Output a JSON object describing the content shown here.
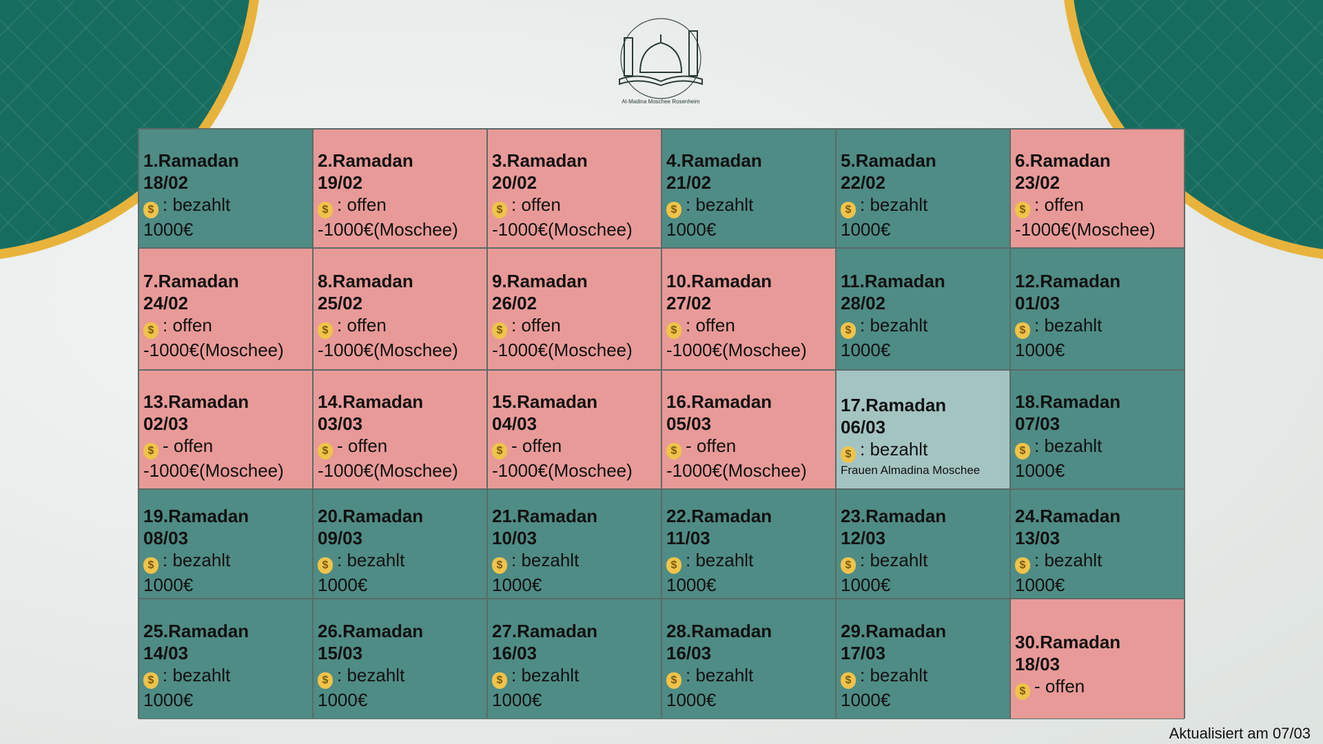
{
  "logo": {
    "text": "Al-Madina Moschee Rosenheim"
  },
  "colors": {
    "bezahlt": "#4f8c85",
    "offen": "#e89a98",
    "special": "#a4c4c2",
    "corner": "#176c60",
    "gold": "#e8b33c"
  },
  "icon": "money-bag-icon",
  "days": [
    {
      "title": "1.Ramadan",
      "date": "18/02",
      "status": ": bezahlt",
      "amount": "1000€",
      "state": "bezahlt"
    },
    {
      "title": "2.Ramadan",
      "date": "19/02",
      "status": ": offen",
      "amount": "-1000€(Moschee)",
      "state": "offen"
    },
    {
      "title": "3.Ramadan",
      "date": "20/02",
      "status": ": offen",
      "amount": "-1000€(Moschee)",
      "state": "offen"
    },
    {
      "title": "4.Ramadan",
      "date": "21/02",
      "status": ": bezahlt",
      "amount": "1000€",
      "state": "bezahlt"
    },
    {
      "title": "5.Ramadan",
      "date": "22/02",
      "status": ": bezahlt",
      "amount": "1000€",
      "state": "bezahlt"
    },
    {
      "title": "6.Ramadan",
      "date": "23/02",
      "status": ": offen",
      "amount": "-1000€(Moschee)",
      "state": "offen"
    },
    {
      "title": "7.Ramadan",
      "date": "24/02",
      "status": ": offen",
      "amount": "-1000€(Moschee)",
      "state": "offen"
    },
    {
      "title": "8.Ramadan",
      "date": "25/02",
      "status": ": offen",
      "amount": "-1000€(Moschee)",
      "state": "offen"
    },
    {
      "title": "9.Ramadan",
      "date": "26/02",
      "status": ": offen",
      "amount": "-1000€(Moschee)",
      "state": "offen"
    },
    {
      "title": "10.Ramadan",
      "date": "27/02",
      "status": ": offen",
      "amount": "-1000€(Moschee)",
      "state": "offen"
    },
    {
      "title": "11.Ramadan",
      "date": "28/02",
      "status": ": bezahlt",
      "amount": "1000€",
      "state": "bezahlt"
    },
    {
      "title": "12.Ramadan",
      "date": "01/03",
      "status": ": bezahlt",
      "amount": "1000€",
      "state": "bezahlt"
    },
    {
      "title": "13.Ramadan",
      "date": "02/03",
      "status": "- offen",
      "amount": "-1000€(Moschee)",
      "state": "offen"
    },
    {
      "title": "14.Ramadan",
      "date": "03/03",
      "status": "- offen",
      "amount": "-1000€(Moschee)",
      "state": "offen"
    },
    {
      "title": "15.Ramadan",
      "date": "04/03",
      "status": "- offen",
      "amount": "-1000€(Moschee)",
      "state": "offen"
    },
    {
      "title": "16.Ramadan",
      "date": "05/03",
      "status": "- offen",
      "amount": "-1000€(Moschee)",
      "state": "offen"
    },
    {
      "title": "17.Ramadan",
      "date": "06/03",
      "status": ": bezahlt",
      "note": "Frauen Almadina Moschee",
      "state": "special"
    },
    {
      "title": "18.Ramadan",
      "date": "07/03",
      "status": ": bezahlt",
      "amount": "1000€",
      "state": "bezahlt"
    },
    {
      "title": "19.Ramadan",
      "date": "08/03",
      "status": ": bezahlt",
      "amount": "1000€",
      "state": "bezahlt"
    },
    {
      "title": "20.Ramadan",
      "date": "09/03",
      "status": ": bezahlt",
      "amount": "1000€",
      "state": "bezahlt"
    },
    {
      "title": "21.Ramadan",
      "date": "10/03",
      "status": ": bezahlt",
      "amount": "1000€",
      "state": "bezahlt"
    },
    {
      "title": "22.Ramadan",
      "date": "11/03",
      "status": ": bezahlt",
      "amount": "1000€",
      "state": "bezahlt"
    },
    {
      "title": "23.Ramadan",
      "date": "12/03",
      "status": ": bezahlt",
      "amount": "1000€",
      "state": "bezahlt"
    },
    {
      "title": "24.Ramadan",
      "date": "13/03",
      "status": ": bezahlt",
      "amount": "1000€",
      "state": "bezahlt"
    },
    {
      "title": "25.Ramadan",
      "date": "14/03",
      "status": ": bezahlt",
      "amount": "1000€",
      "state": "bezahlt"
    },
    {
      "title": "26.Ramadan",
      "date": "15/03",
      "status": ": bezahlt",
      "amount": "1000€",
      "state": "bezahlt"
    },
    {
      "title": "27.Ramadan",
      "date": "16/03",
      "status": ": bezahlt",
      "amount": "1000€",
      "state": "bezahlt"
    },
    {
      "title": "28.Ramadan",
      "date": "16/03",
      "status": ": bezahlt",
      "amount": "1000€",
      "state": "bezahlt"
    },
    {
      "title": "29.Ramadan",
      "date": "17/03",
      "status": ": bezahlt",
      "amount": "1000€",
      "state": "bezahlt"
    },
    {
      "title": "30.Ramadan",
      "date": "18/03",
      "status": "- offen",
      "state": "offen"
    }
  ],
  "footer": "Aktualisiert am 07/03"
}
